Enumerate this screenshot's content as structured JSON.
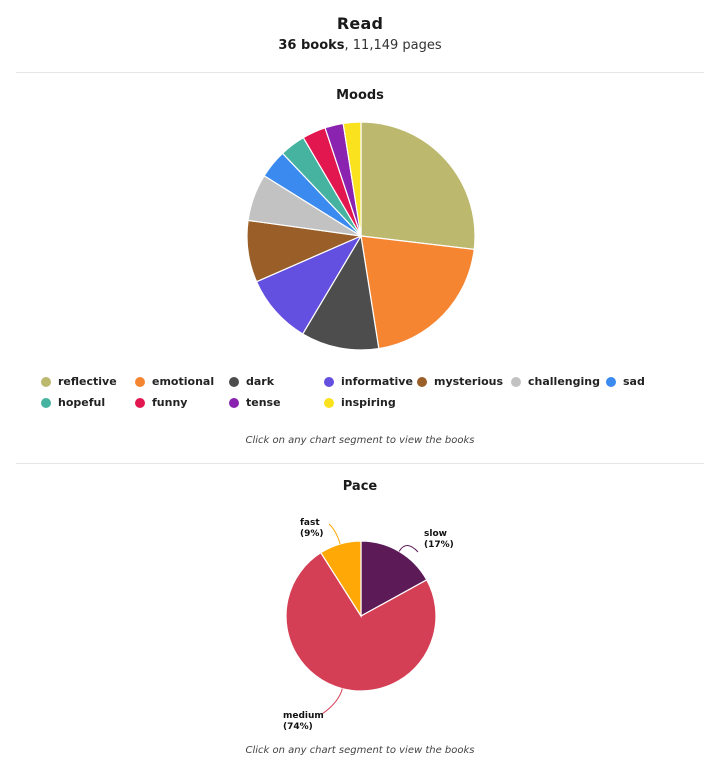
{
  "header": {
    "title": "Read",
    "books": "36 books",
    "pages": ", 11,149 pages"
  },
  "moods_section": {
    "title": "Moods",
    "hint": "Click on any chart segment to view the books"
  },
  "pace_section": {
    "title": "Pace",
    "hint": "Click on any chart segment to view the books"
  },
  "chart_data": [
    {
      "type": "pie",
      "title": "Moods",
      "legend_position": "bottom",
      "categories": [
        "reflective",
        "emotional",
        "dark",
        "informative",
        "mysterious",
        "challenging",
        "sad",
        "hopeful",
        "funny",
        "tense",
        "inspiring"
      ],
      "values": [
        25.8,
        19.8,
        10.6,
        9.5,
        8.4,
        6.4,
        3.9,
        3.5,
        3.2,
        2.5,
        2.4
      ],
      "colors": [
        "#bcb86d",
        "#f58531",
        "#4d4d4d",
        "#634fe0",
        "#9a5f28",
        "#c2c2c2",
        "#3a8af0",
        "#46b3a1",
        "#e3174f",
        "#8a24b0",
        "#fae21e"
      ]
    },
    {
      "type": "pie",
      "title": "Pace",
      "categories": [
        "slow",
        "medium",
        "fast"
      ],
      "values": [
        17,
        74,
        9
      ],
      "labels": [
        "(17%)",
        "(74%)",
        "(9%)"
      ],
      "colors": [
        "#5c1a57",
        "#d43f55",
        "#ffa806"
      ]
    }
  ]
}
